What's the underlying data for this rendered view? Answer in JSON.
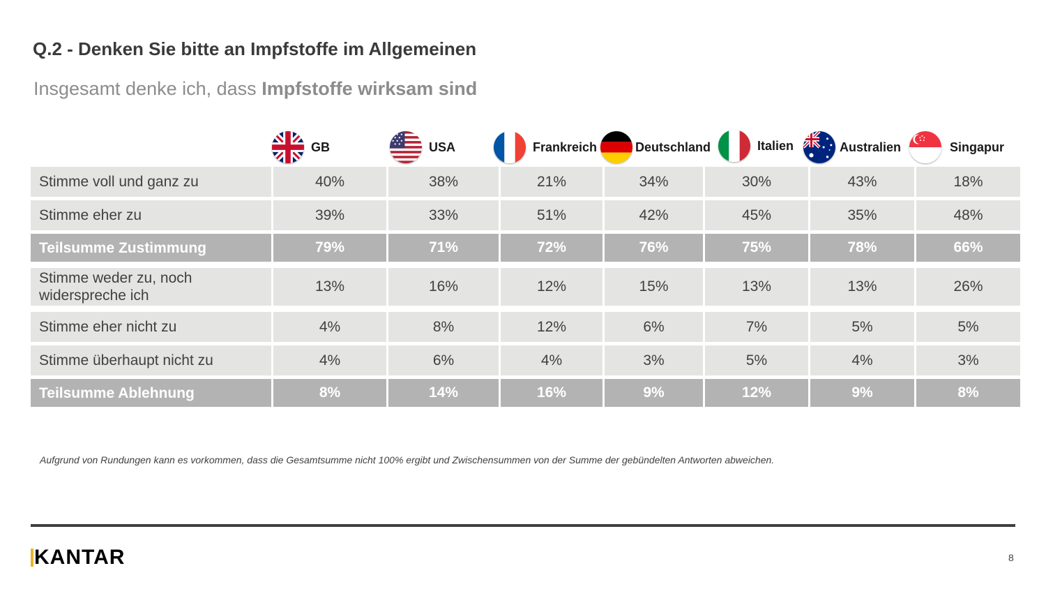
{
  "title": "Q.2 - Denken Sie bitte an Impfstoffe im Allgemeinen",
  "subtitle": {
    "prefix": "Insgesamt denke ich, dass ",
    "bold": "Impfstoffe wirksam sind"
  },
  "countries": [
    {
      "name": "GB",
      "flag": "uk-flag-icon"
    },
    {
      "name": "USA",
      "flag": "usa-flag-icon"
    },
    {
      "name": "Frankreich",
      "flag": "france-flag-icon"
    },
    {
      "name": "Deutschland",
      "flag": "germany-flag-icon"
    },
    {
      "name": "Italien",
      "flag": "italy-flag-icon"
    },
    {
      "name": "Australien",
      "flag": "australia-flag-icon"
    },
    {
      "name": "Singapur",
      "flag": "singapore-flag-icon"
    }
  ],
  "rows": [
    {
      "label": "Stimme voll und ganz zu",
      "values": [
        "40%",
        "38%",
        "21%",
        "34%",
        "30%",
        "43%",
        "18%"
      ]
    },
    {
      "label": "Stimme eher zu",
      "values": [
        "39%",
        "33%",
        "51%",
        "42%",
        "45%",
        "35%",
        "48%"
      ]
    },
    {
      "label": "Teilsumme Zustimmung",
      "values": [
        "79%",
        "71%",
        "72%",
        "76%",
        "75%",
        "78%",
        "66%"
      ]
    },
    {
      "label": "Stimme weder zu, noch widerspreche ich",
      "values": [
        "13%",
        "16%",
        "12%",
        "15%",
        "13%",
        "13%",
        "26%"
      ]
    },
    {
      "label": "Stimme eher nicht zu",
      "values": [
        "4%",
        "8%",
        "12%",
        "6%",
        "7%",
        "5%",
        "5%"
      ]
    },
    {
      "label": "Stimme überhaupt nicht zu",
      "values": [
        "4%",
        "6%",
        "4%",
        "3%",
        "5%",
        "4%",
        "3%"
      ]
    },
    {
      "label": "Teilsumme Ablehnung",
      "values": [
        "8%",
        "14%",
        "16%",
        "9%",
        "12%",
        "9%",
        "8%"
      ]
    }
  ],
  "footnote": "Aufgrund von Rundungen kann es vorkommen, dass die Gesamtsumme nicht 100% ergibt und Zwischensummen von der Summe der gebündelten Antworten abweichen.",
  "brand": "KANTAR",
  "page_number": "8"
}
